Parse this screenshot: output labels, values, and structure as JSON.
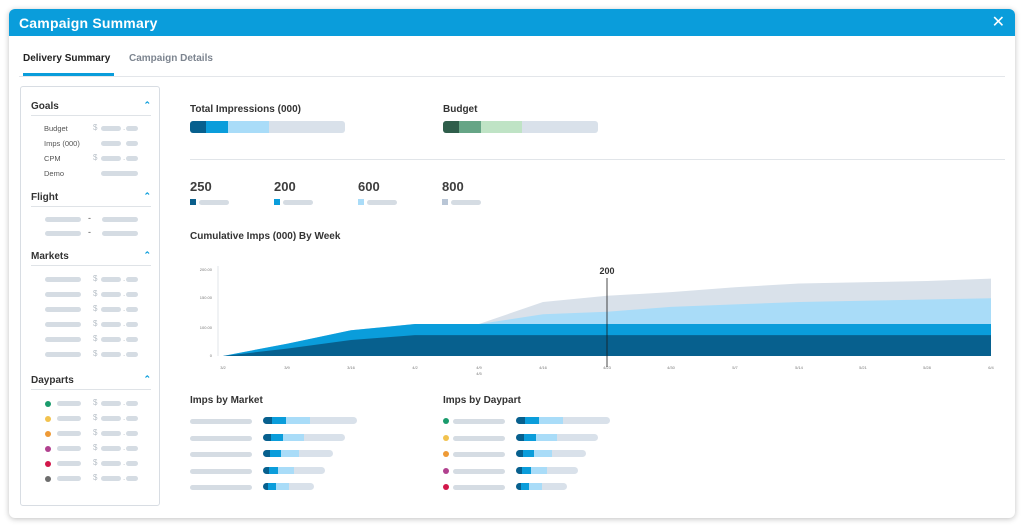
{
  "window": {
    "title": "Campaign Summary",
    "close_icon": "close-icon"
  },
  "tabs": [
    {
      "label": "Delivery Summary",
      "active": true
    },
    {
      "label": "Campaign Details",
      "active": false
    }
  ],
  "sidebar": {
    "goals": {
      "title": "Goals",
      "items": [
        "Budget",
        "Imps (000)",
        "CPM",
        "Demo"
      ]
    },
    "flight": {
      "title": "Flight",
      "separator": "-"
    },
    "markets": {
      "title": "Markets"
    },
    "dayparts": {
      "title": "Dayparts",
      "dot_colors": [
        "#1a9b6c",
        "#f2c24e",
        "#ee9a36",
        "#b1418f",
        "#d2174a",
        "#6d6d6d"
      ]
    },
    "currency_symbol": "$",
    "decimal_symbol": "."
  },
  "main": {
    "total_impressions_label": "Total Impressions (000)",
    "budget_label": "Budget",
    "stats": [
      {
        "value": "250",
        "color": "#0b5f8c"
      },
      {
        "value": "200",
        "color": "#0a9ddb"
      },
      {
        "value": "600",
        "color": "#aadcf8"
      },
      {
        "value": "800",
        "color": "#b9c6d6"
      }
    ],
    "chart_title": "Cumulative Imps (000) By Week",
    "imps_by_market_label": "Imps by Market",
    "imps_by_daypart_label": "Imps by Daypart"
  },
  "chart_data": {
    "type": "area",
    "title": "Cumulative Imps (000) By Week",
    "x": [
      "3/2",
      "3/9",
      "3/16",
      "4/2",
      "4/9",
      "4/16",
      "4/23",
      "4/30",
      "5/7",
      "5/14",
      "5/21",
      "5/28",
      "6/4"
    ],
    "x_extra_label": "4/5",
    "y_ticks": [
      "200.00",
      "150.00",
      "100.00",
      "0"
    ],
    "marker_label": "200",
    "series": [
      {
        "values": [
          0,
          6,
          13,
          17,
          17,
          17,
          17,
          17,
          17,
          17,
          17,
          17,
          17
        ],
        "color": "#07608e"
      },
      {
        "values": [
          0,
          10,
          21,
          26,
          26,
          26,
          26,
          26,
          26,
          26,
          26,
          26,
          26
        ],
        "color": "#0a9ddb"
      },
      {
        "values": [
          0,
          10,
          21,
          26,
          26,
          34,
          36,
          40,
          42,
          44,
          45,
          46,
          47
        ],
        "color": "#a9dcf8"
      },
      {
        "values": [
          0,
          10,
          21,
          26,
          26,
          44,
          49,
          52,
          56,
          59,
          60,
          61,
          63
        ],
        "color": "#d9e1ea"
      }
    ]
  }
}
